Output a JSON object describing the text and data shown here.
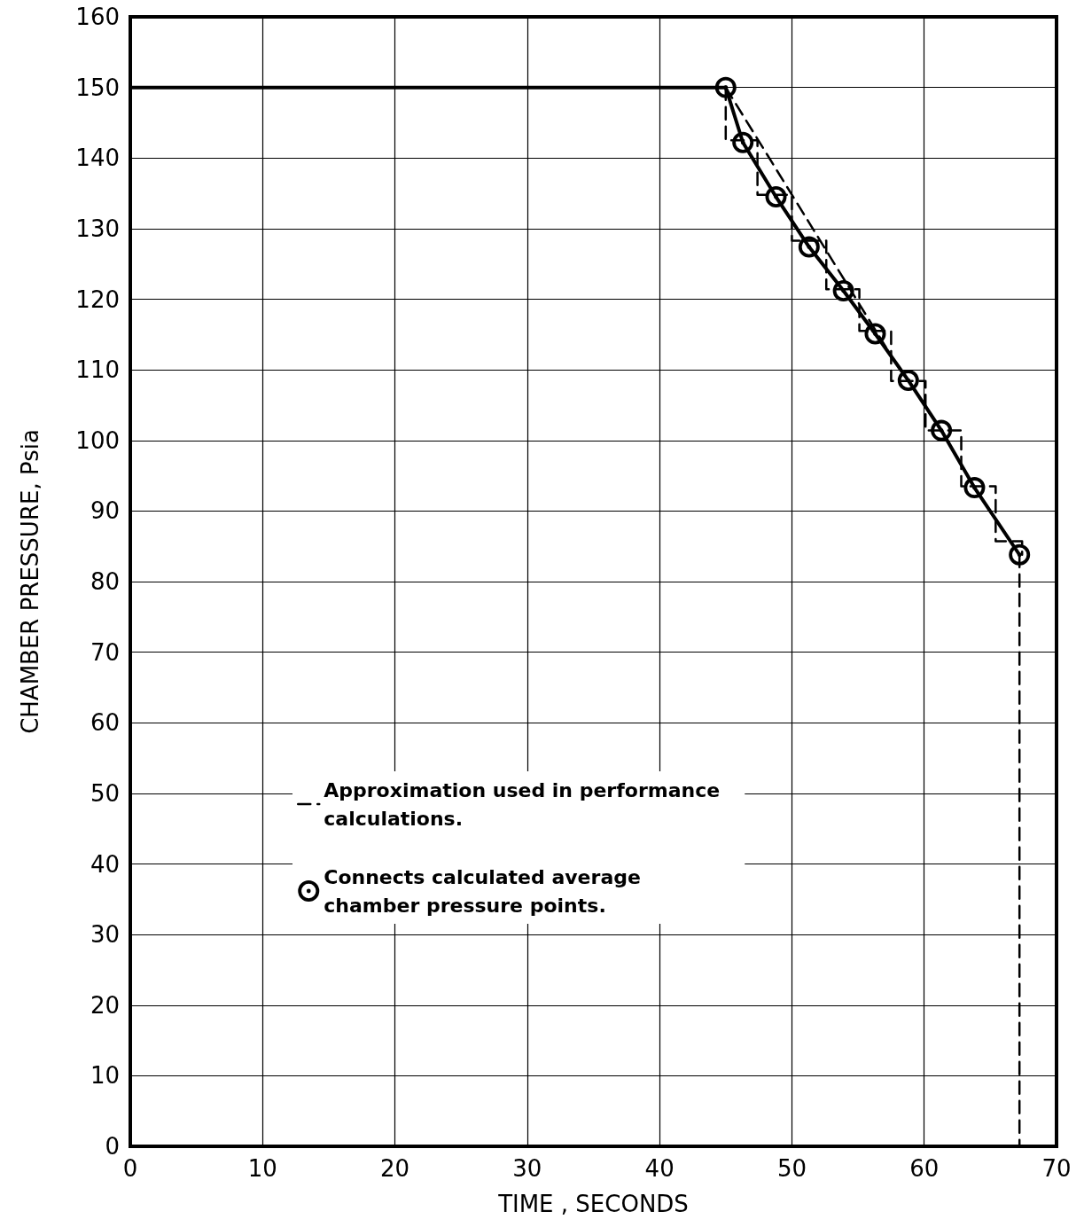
{
  "chart_data": {
    "type": "line",
    "xlabel": "TIME , SECONDS",
    "ylabel": "CHAMBER PRESSURE, Psia",
    "xlim": [
      0,
      70
    ],
    "xticks": [
      0,
      10,
      20,
      30,
      40,
      50,
      60,
      70
    ],
    "ylim": [
      0,
      160
    ],
    "yticks": [
      0,
      10,
      20,
      30,
      40,
      50,
      60,
      70,
      80,
      90,
      100,
      110,
      120,
      130,
      140,
      150,
      160
    ],
    "grid": true,
    "legend": "bottom left",
    "series": [
      {
        "name": "Approximation used in performance calculations.",
        "color": "#000000",
        "line_style": "dashed",
        "marker": "none",
        "x": [
          45,
          45,
          47.4,
          47.4,
          50,
          50,
          52.6,
          52.6,
          55.1,
          55.1,
          57.5,
          57.5,
          60.1,
          60.1,
          62.8,
          62.8,
          65.4,
          65.4,
          67.4,
          67.4
        ],
        "values": [
          150,
          142.5,
          142.5,
          134.8,
          134.8,
          128.3,
          128.3,
          121.4,
          121.4,
          115.5,
          115.5,
          108.4,
          108.4,
          101.4,
          101.4,
          93.5,
          93.5,
          85.7,
          85.7,
          83.8
        ]
      },
      {
        "color": "#000000",
        "line_style": "dashed",
        "x": [
          45,
          57.5
        ],
        "values": [
          150,
          112
        ]
      },
      {
        "color": "#000000",
        "line_style": "dashed",
        "x": [
          67.2,
          67.2
        ],
        "values": [
          83.8,
          0
        ]
      },
      {
        "color": "#000000",
        "line_style": "solid",
        "x": [
          0,
          45
        ],
        "values": [
          150,
          150
        ]
      },
      {
        "name": "Connects calculated average chamber pressure points.",
        "color": "#000000",
        "line_style": "solid",
        "marker": "circle",
        "x": [
          45,
          46.3,
          48.8,
          51.3,
          53.9,
          56.3,
          58.8,
          61.3,
          63.8,
          67.2
        ],
        "values": [
          150,
          142.2,
          134.5,
          127.4,
          121.2,
          115.1,
          108.5,
          101.4,
          93.3,
          83.8
        ]
      }
    ]
  }
}
